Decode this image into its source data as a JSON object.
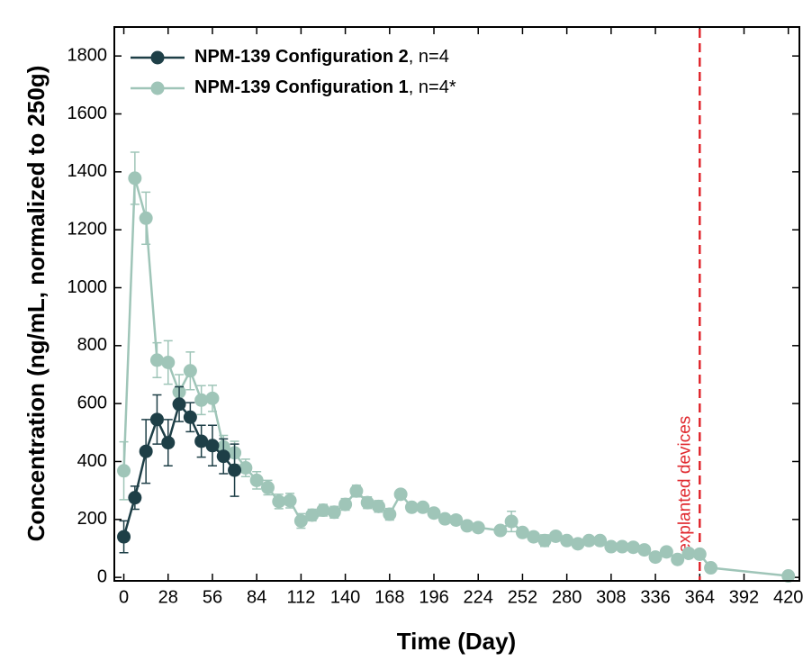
{
  "chart_data": {
    "type": "line",
    "xlabel": "Time (Day)",
    "ylabel": "Concentration (ng/mL, normalized to 250g)",
    "xlim": [
      -6,
      427
    ],
    "ylim": [
      -12,
      1900
    ],
    "xticks": [
      0,
      28,
      56,
      84,
      112,
      140,
      168,
      196,
      224,
      252,
      280,
      308,
      336,
      364,
      392,
      420
    ],
    "yticks": [
      0,
      200,
      400,
      600,
      800,
      1000,
      1200,
      1400,
      1600,
      1800
    ],
    "legend": "upper left",
    "series": [
      {
        "name": "NPM-139 Configuration 2",
        "note": ", n=4",
        "color": "#1e3f47",
        "x": [
          0,
          7,
          14,
          21,
          28,
          35,
          42,
          49,
          56,
          63,
          70
        ],
        "values": [
          140,
          275,
          435,
          545,
          465,
          598,
          553,
          470,
          455,
          418,
          370
        ],
        "errors": [
          55,
          40,
          110,
          85,
          80,
          60,
          50,
          55,
          70,
          60,
          90
        ]
      },
      {
        "name": "NPM-139 Configuration 1",
        "note": ", n=4*",
        "color": "#9fc5b8",
        "x": [
          0,
          7,
          14,
          21,
          28,
          35,
          42,
          49,
          56,
          63,
          70,
          77,
          84,
          91,
          98,
          105,
          112,
          119,
          126,
          133,
          140,
          147,
          154,
          161,
          168,
          175,
          182,
          189,
          196,
          203,
          210,
          217,
          224,
          238,
          245,
          252,
          259,
          266,
          273,
          280,
          287,
          294,
          301,
          308,
          315,
          322,
          329,
          336,
          343,
          350,
          357,
          364,
          371,
          420
        ],
        "values": [
          368,
          1378,
          1240,
          750,
          742,
          640,
          713,
          612,
          618,
          450,
          430,
          378,
          335,
          310,
          262,
          265,
          195,
          215,
          232,
          225,
          252,
          298,
          258,
          245,
          218,
          287,
          242,
          242,
          222,
          202,
          198,
          178,
          172,
          162,
          193,
          155,
          140,
          127,
          142,
          127,
          116,
          127,
          127,
          106,
          106,
          104,
          95,
          70,
          88,
          62,
          83,
          80,
          33,
          5
        ],
        "errors": [
          100,
          90,
          90,
          60,
          75,
          60,
          65,
          50,
          45,
          40,
          40,
          30,
          30,
          25,
          25,
          25,
          25,
          20,
          20,
          20,
          20,
          20,
          20,
          20,
          20,
          15,
          15,
          15,
          15,
          15,
          15,
          15,
          15,
          15,
          35,
          15,
          15,
          20,
          15,
          15,
          10,
          15,
          15,
          15,
          15,
          15,
          15,
          15,
          15,
          10,
          15,
          15,
          5,
          5
        ]
      }
    ],
    "annotation": {
      "text": "explanted devices",
      "x": 364,
      "color": "#e0282e"
    }
  }
}
